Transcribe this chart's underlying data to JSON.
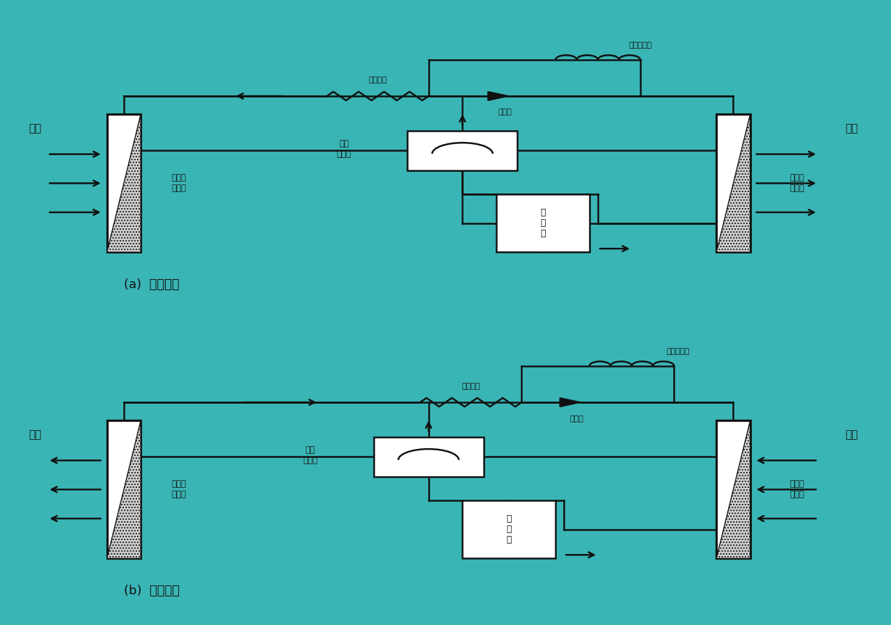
{
  "fig_w": 12.8,
  "fig_h": 8.98,
  "teal": "#3ab5b5",
  "bg_top": "#e0e0e0",
  "bg_bottom": "#c8c8c8",
  "lc": "#111111",
  "lw": 1.8,
  "title_a": "(a)  制冷循环",
  "title_b": "(b)  制热循环",
  "lbl_indoor": "室内侧\n换热器",
  "lbl_outdoor": "室外侧\n换热器",
  "lbl_comp": "压\n缩\n机",
  "lbl_4way": "四通\n换向阀",
  "lbl_main_cap": "主毛细管",
  "lbl_aux_cap": "辅助毛细管",
  "lbl_check": "单向阀",
  "lbl_absorb_a": "吸热",
  "lbl_scatter_a": "散热",
  "lbl_absorb_b": "吸热",
  "lbl_scatter_b": "散热"
}
